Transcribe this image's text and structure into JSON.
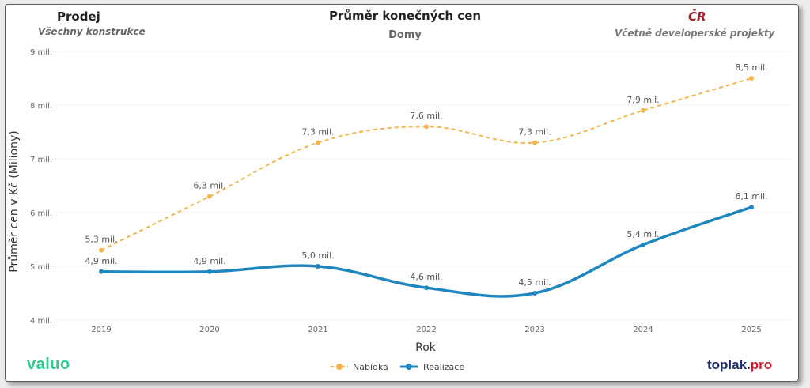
{
  "header": {
    "left_title": "Prodej",
    "left_subtitle": "Všechny konstrukce",
    "center_title": "Průměr konečných cen",
    "center_subtitle": "Domy",
    "right_title": "ČR",
    "right_subtitle": "Včetně developerské projekty"
  },
  "brands": {
    "left": "valuo",
    "right_main": "toplak",
    "right_dot": ".",
    "right_suffix": "pro"
  },
  "colors": {
    "offer": "#f4b54a",
    "realization": "#1f87bf",
    "valuo_brand": "#2ecc8f",
    "accent_red": "#a3202a"
  },
  "chart_data": {
    "type": "line",
    "title": "Průměr konečných cen",
    "subtitle": "Domy",
    "xlabel": "Rok",
    "ylabel": "Průměr cen v Kč (Miliony)",
    "categories": [
      "2019",
      "2020",
      "2021",
      "2022",
      "2023",
      "2024",
      "2025"
    ],
    "ylim": [
      4,
      9
    ],
    "yticks": [
      4,
      5,
      6,
      7,
      8,
      9
    ],
    "ytick_labels": [
      "4 mil.",
      "5 mil.",
      "6 mil.",
      "7 mil.",
      "8 mil.",
      "9 mil."
    ],
    "grid": true,
    "legend_position": "bottom-center",
    "series": [
      {
        "name": "Nabídka",
        "style": "dashed",
        "values": [
          5.3,
          6.3,
          7.3,
          7.6,
          7.3,
          7.9,
          8.5
        ],
        "labels": [
          "5,3 mil.",
          "6,3 mil.",
          "7,3 mil.",
          "7,6 mil.",
          "7,3 mil.",
          "7,9 mil.",
          "8,5 mil."
        ]
      },
      {
        "name": "Realizace",
        "style": "solid",
        "values": [
          4.9,
          4.9,
          5.0,
          4.6,
          4.5,
          5.4,
          6.1
        ],
        "labels": [
          "4,9 mil.",
          "4,9 mil.",
          "5,0 mil.",
          "4,6 mil.",
          "4,5 mil.",
          "5,4 mil.",
          "6,1 mil."
        ]
      }
    ]
  }
}
